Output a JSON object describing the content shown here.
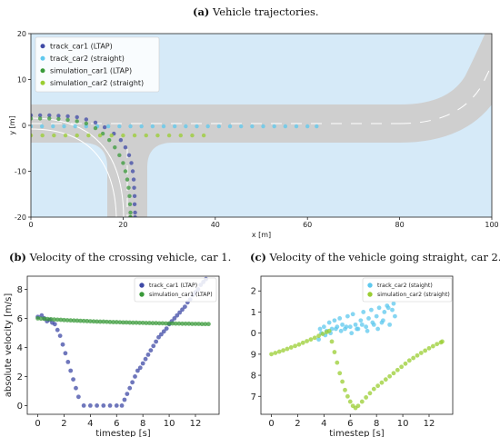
{
  "captions": {
    "a": {
      "tag": "(a)",
      "text": " Vehicle trajectories."
    },
    "b": {
      "tag": "(b)",
      "text": " Velocity of the crossing vehicle, car 1."
    },
    "c": {
      "tag": "(c)",
      "text": " Velocity of the vehicle going straight, car 2."
    }
  },
  "colors": {
    "sky": "#d6eaf8",
    "road": "#cfcfcf",
    "lane_mark": "#ffffff",
    "track_car1": "#3f4aa6",
    "track_car2": "#5ec8ee",
    "simulation_car1": "#3a9a3a",
    "simulation_car2": "#9acd32"
  },
  "chart_data": [
    {
      "type": "scatter",
      "panel": "a",
      "xlabel": "x [m]",
      "ylabel": "y [m]",
      "xlim": [
        0,
        100
      ],
      "ylim": [
        -20,
        20
      ],
      "xticks": [
        "0",
        "20",
        "40",
        "60",
        "80",
        "100"
      ],
      "yticks": [
        "20",
        "10",
        "0",
        "-10",
        "-20"
      ],
      "xtick_values": [
        0,
        20,
        40,
        60,
        80,
        100
      ],
      "ytick_values": [
        20,
        10,
        0,
        -10,
        -20
      ],
      "grid": false,
      "legend": "top-left",
      "series": [
        {
          "name": "track_car1 (LTAP)",
          "x": [
            0,
            2,
            4,
            6,
            8,
            10,
            12,
            14,
            16,
            18,
            19.5,
            20.5,
            21.3,
            21.8,
            22.1,
            22.3,
            22.4,
            22.5,
            22.5,
            22.6,
            22.6
          ],
          "y": [
            2.2,
            2.2,
            2.2,
            2.1,
            2.0,
            1.8,
            1.3,
            0.6,
            -0.4,
            -1.8,
            -3.2,
            -4.8,
            -6.5,
            -8.2,
            -10,
            -11.8,
            -13.6,
            -15.4,
            -17.2,
            -19,
            -20
          ]
        },
        {
          "name": "track_car2 (straight)",
          "x": [
            0,
            2.4,
            4.8,
            7.2,
            9.6,
            12,
            14.4,
            16.8,
            19.2,
            21.6,
            24,
            26.4,
            28.8,
            31.2,
            33.6,
            36,
            38.4,
            40.8,
            43.2,
            45.6,
            48,
            50.4,
            52.8,
            55.2,
            57.6,
            60,
            62
          ],
          "y": [
            -0.2,
            -0.2,
            -0.2,
            -0.2,
            -0.2,
            -0.2,
            -0.2,
            -0.2,
            -0.2,
            -0.2,
            -0.2,
            -0.2,
            -0.2,
            -0.2,
            -0.2,
            -0.2,
            -0.2,
            -0.2,
            -0.2,
            -0.2,
            -0.2,
            -0.2,
            -0.2,
            -0.2,
            -0.2,
            -0.2,
            -0.2
          ]
        },
        {
          "name": "simulation_car1 (LTAP)",
          "x": [
            0,
            2,
            4,
            6,
            8,
            10,
            12,
            14,
            15.6,
            17,
            18.2,
            19.2,
            20,
            20.5,
            20.9,
            21.2,
            21.4,
            21.5,
            21.6,
            21.6,
            21.6
          ],
          "y": [
            1.5,
            1.5,
            1.5,
            1.4,
            1.2,
            0.9,
            0.4,
            -0.6,
            -1.8,
            -3.2,
            -4.8,
            -6.5,
            -8.2,
            -10,
            -11.8,
            -13.6,
            -15.4,
            -17.2,
            -19,
            -20,
            -20
          ]
        },
        {
          "name": "simulation_car2 (straight)",
          "x": [
            0,
            2.5,
            5,
            7.5,
            10,
            12.5,
            15,
            17.5,
            20,
            22.5,
            25,
            27.5,
            30,
            32.5,
            35,
            37.5
          ],
          "y": [
            -2.2,
            -2.2,
            -2.2,
            -2.2,
            -2.2,
            -2.2,
            -2.2,
            -2.2,
            -2.2,
            -2.2,
            -2.2,
            -2.2,
            -2.2,
            -2.2,
            -2.2,
            -2.2
          ]
        }
      ]
    },
    {
      "type": "scatter",
      "panel": "b",
      "xlabel": "timestep [s]",
      "ylabel": "absolute velocity [m/s]",
      "xlim": [
        -0.8,
        13.8
      ],
      "ylim": [
        -0.6,
        8.9
      ],
      "xticks": [
        "0",
        "2",
        "4",
        "6",
        "8",
        "10",
        "12"
      ],
      "yticks": [
        "0",
        "2",
        "4",
        "6",
        "8"
      ],
      "xtick_values": [
        0,
        2,
        4,
        6,
        8,
        10,
        12
      ],
      "ytick_values": [
        0,
        2,
        4,
        6,
        8
      ],
      "grid": false,
      "legend": "top-right",
      "series": [
        {
          "name": "track_car1 (LTAP)",
          "x": [
            0,
            0.3,
            0.5,
            0.7,
            0.9,
            1.1,
            1.3,
            1.5,
            1.7,
            1.9,
            2.1,
            2.3,
            2.5,
            2.7,
            2.9,
            3.1,
            3.5,
            4,
            4.5,
            5,
            5.5,
            6,
            6.4,
            6.6,
            6.8,
            7,
            7.2,
            7.4,
            7.6,
            7.8,
            8,
            8.2,
            8.4,
            8.6,
            8.8,
            9,
            9.2,
            9.4,
            9.6,
            9.8,
            10,
            10.2,
            10.4,
            10.6,
            10.8,
            11,
            11.2,
            11.4,
            11.6,
            11.8,
            12,
            12.2,
            12.4,
            12.6,
            12.8
          ],
          "y": [
            6.1,
            6.2,
            6.0,
            5.8,
            5.9,
            5.7,
            5.6,
            5.2,
            4.8,
            4.2,
            3.6,
            3.0,
            2.4,
            1.8,
            1.2,
            0.6,
            0,
            0,
            0,
            0,
            0,
            0,
            0,
            0.4,
            0.8,
            1.2,
            1.6,
            2.0,
            2.4,
            2.6,
            2.9,
            3.2,
            3.5,
            3.8,
            4.1,
            4.4,
            4.7,
            4.9,
            5.1,
            5.3,
            5.6,
            5.8,
            6.0,
            6.2,
            6.4,
            6.6,
            6.8,
            7.1,
            7.3,
            7.6,
            7.8,
            8.0,
            8.3,
            8.5,
            8.7
          ]
        },
        {
          "name": "simulation_car1 (LTAP)",
          "x": [
            0,
            0.25,
            0.5,
            0.75,
            1,
            1.25,
            1.5,
            1.75,
            2,
            2.25,
            2.5,
            2.75,
            3,
            3.25,
            3.5,
            3.75,
            4,
            4.25,
            4.5,
            4.75,
            5,
            5.25,
            5.5,
            5.75,
            6,
            6.25,
            6.5,
            6.75,
            7,
            7.25,
            7.5,
            7.75,
            8,
            8.25,
            8.5,
            8.75,
            9,
            9.25,
            9.5,
            9.75,
            10,
            10.25,
            10.5,
            10.75,
            11,
            11.25,
            11.5,
            11.75,
            12,
            12.25,
            12.5,
            12.75,
            13
          ],
          "y": [
            6.0,
            5.98,
            5.97,
            5.95,
            5.94,
            5.92,
            5.91,
            5.9,
            5.88,
            5.87,
            5.86,
            5.85,
            5.84,
            5.83,
            5.82,
            5.81,
            5.8,
            5.79,
            5.78,
            5.77,
            5.77,
            5.76,
            5.75,
            5.74,
            5.74,
            5.73,
            5.72,
            5.72,
            5.71,
            5.7,
            5.7,
            5.69,
            5.69,
            5.68,
            5.68,
            5.67,
            5.67,
            5.66,
            5.66,
            5.65,
            5.65,
            5.65,
            5.64,
            5.64,
            5.63,
            5.63,
            5.63,
            5.62,
            5.62,
            5.62,
            5.61,
            5.61,
            5.61
          ]
        }
      ]
    },
    {
      "type": "scatter",
      "panel": "c",
      "xlabel": "timestep [s]",
      "ylabel": "absolute velocity [m/s]",
      "xlim": [
        -0.8,
        13.8
      ],
      "ylim": [
        6.15,
        12.7
      ],
      "xticks": [
        "0",
        "2",
        "4",
        "6",
        "8",
        "10",
        "12"
      ],
      "yticks": [
        "7",
        "8",
        "9",
        "10",
        "11",
        "12"
      ],
      "xtick_values": [
        0,
        2,
        4,
        6,
        8,
        10,
        12
      ],
      "ytick_values": [
        7,
        8,
        9,
        10,
        11,
        12
      ],
      "grid": false,
      "legend": "top-right",
      "series": [
        {
          "name": "track_car2 (staight)",
          "x": [
            3.6,
            3.8,
            4,
            4.2,
            4.4,
            4.6,
            4.8,
            5,
            5.2,
            5.4,
            5.6,
            5.8,
            6,
            6.2,
            6.4,
            6.6,
            6.8,
            7,
            7.2,
            7.4,
            7.6,
            7.8,
            8,
            8.2,
            8.4,
            8.6,
            8.8,
            9,
            9.2,
            9.4,
            3.7,
            4.1,
            4.5,
            4.9,
            5.3,
            5.7,
            6.1,
            6.5,
            6.9,
            7.3,
            7.7,
            8.1,
            8.5,
            8.9,
            9.3
          ],
          "y": [
            9.7,
            10.0,
            10.3,
            10.1,
            10.5,
            10.2,
            10.6,
            10.3,
            10.7,
            10.4,
            10.2,
            10.8,
            10.3,
            10.9,
            10.4,
            10.2,
            10.6,
            11.0,
            10.3,
            10.7,
            11.1,
            10.4,
            10.8,
            11.2,
            10.5,
            11.0,
            11.3,
            10.4,
            11.1,
            10.8,
            10.2,
            9.9,
            10.0,
            10.2,
            10.1,
            10.3,
            10.0,
            10.2,
            10.4,
            10.1,
            10.5,
            10.2,
            10.6,
            11.2,
            11.4
          ]
        },
        {
          "name": "simulation_car2 (straight)",
          "x": [
            0,
            0.3,
            0.6,
            0.9,
            1.2,
            1.5,
            1.8,
            2.1,
            2.4,
            2.7,
            3,
            3.3,
            3.6,
            3.9,
            4.2,
            4.4,
            4.6,
            4.8,
            5,
            5.2,
            5.4,
            5.6,
            5.8,
            6,
            6.2,
            6.4,
            6.6,
            6.9,
            7.2,
            7.5,
            7.8,
            8.1,
            8.4,
            8.7,
            9,
            9.3,
            9.6,
            9.9,
            10.2,
            10.5,
            10.8,
            11.1,
            11.4,
            11.7,
            12,
            12.3,
            12.6,
            12.9,
            13
          ],
          "y": [
            9.0,
            9.06,
            9.12,
            9.18,
            9.25,
            9.32,
            9.39,
            9.46,
            9.54,
            9.62,
            9.7,
            9.78,
            9.87,
            9.96,
            10.05,
            10.1,
            9.6,
            9.1,
            8.6,
            8.1,
            7.7,
            7.3,
            7.0,
            6.75,
            6.55,
            6.45,
            6.55,
            6.75,
            6.95,
            7.15,
            7.35,
            7.5,
            7.65,
            7.8,
            7.95,
            8.1,
            8.25,
            8.4,
            8.55,
            8.7,
            8.82,
            8.94,
            9.06,
            9.17,
            9.28,
            9.38,
            9.48,
            9.56,
            9.6
          ]
        }
      ]
    }
  ]
}
